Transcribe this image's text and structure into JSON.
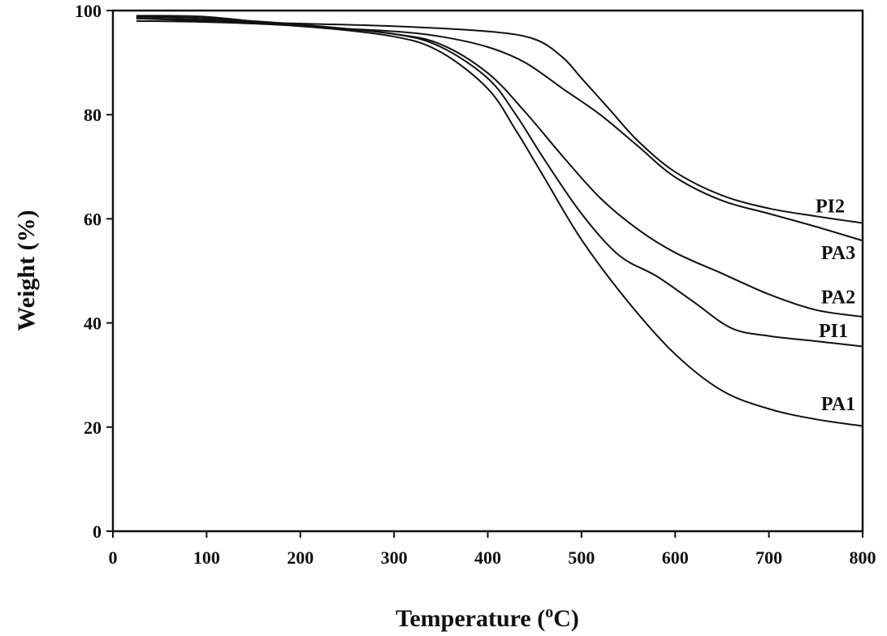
{
  "chart_data": {
    "type": "line",
    "title": "",
    "xlabel": "Temperature (",
    "xlabel_super": "o",
    "xlabel_end": "C)",
    "ylabel": "Weight (%)",
    "xlim": [
      0,
      800
    ],
    "ylim": [
      0,
      100
    ],
    "xticks": [
      0,
      100,
      200,
      300,
      400,
      500,
      600,
      700,
      800
    ],
    "yticks": [
      0,
      20,
      40,
      60,
      80,
      100
    ],
    "grid": false,
    "series": [
      {
        "name": "PI2",
        "x": [
          25,
          100,
          200,
          300,
          400,
          450,
          480,
          500,
          530,
          560,
          600,
          650,
          700,
          750,
          800
        ],
        "y": [
          98.5,
          98,
          97.5,
          97,
          96,
          94.5,
          91,
          87,
          81,
          75,
          69,
          64.5,
          62,
          60.5,
          59.2
        ]
      },
      {
        "name": "PA3",
        "x": [
          25,
          100,
          200,
          300,
          350,
          400,
          440,
          480,
          520,
          560,
          600,
          650,
          700,
          750,
          800
        ],
        "y": [
          99,
          98.8,
          97,
          96,
          95,
          93,
          90,
          85,
          80,
          74,
          68,
          63.5,
          61,
          58.5,
          55.8
        ]
      },
      {
        "name": "PA2",
        "x": [
          25,
          100,
          200,
          300,
          350,
          400,
          440,
          480,
          520,
          560,
          600,
          650,
          700,
          750,
          800
        ],
        "y": [
          98.8,
          98.5,
          97.3,
          95.5,
          93.5,
          88,
          80.5,
          72,
          64,
          58,
          53.5,
          49.5,
          45.5,
          42.5,
          41.2
        ]
      },
      {
        "name": "PI1",
        "x": [
          25,
          100,
          200,
          300,
          350,
          400,
          430,
          460,
          500,
          540,
          580,
          620,
          660,
          700,
          750,
          800
        ],
        "y": [
          98.5,
          98.2,
          97.2,
          95.5,
          93,
          87,
          80,
          71.5,
          61,
          53,
          49,
          44,
          39,
          37.5,
          36.5,
          35.5
        ]
      },
      {
        "name": "PA1",
        "x": [
          25,
          100,
          200,
          300,
          350,
          400,
          430,
          460,
          500,
          550,
          600,
          650,
          700,
          750,
          800
        ],
        "y": [
          98,
          97.8,
          97,
          95,
          92,
          85,
          77,
          68,
          56,
          44,
          34,
          27,
          23.5,
          21.5,
          20.2
        ]
      }
    ],
    "annotations": [
      {
        "text": "PI2",
        "x": 1022,
        "y": 62.5
      },
      {
        "text": "PA3",
        "x": 1032,
        "y": 53.5
      },
      {
        "text": "PA2",
        "x": 1032,
        "y": 45
      },
      {
        "text": "PI1",
        "x": 1026,
        "y": 38.5
      },
      {
        "text": "PA1",
        "x": 1032,
        "y": 24.5
      }
    ]
  }
}
